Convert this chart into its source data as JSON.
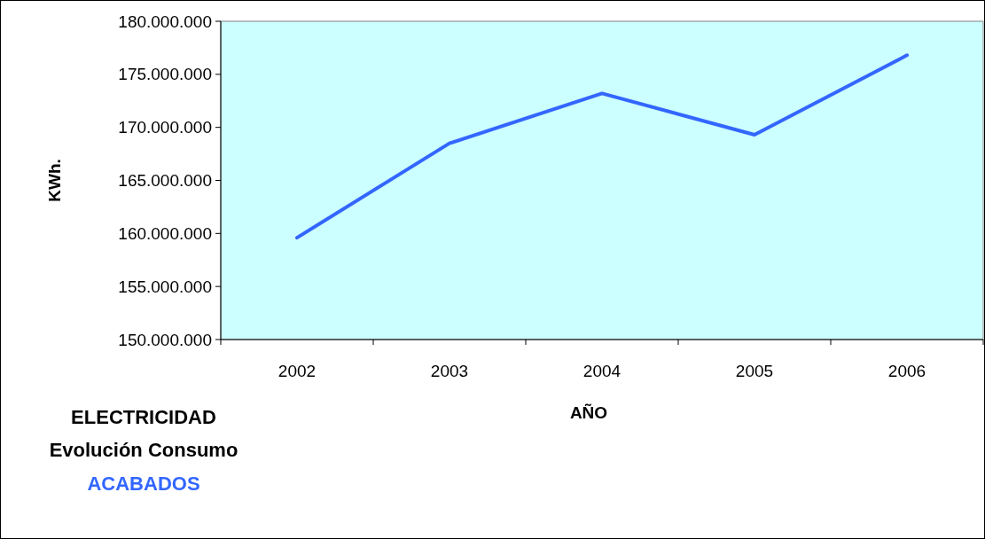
{
  "chart_data": {
    "type": "line",
    "title": "ELECTRICIDAD",
    "subtitle": "Evolución Consumo",
    "xlabel": "AÑO",
    "ylabel": "KWh.",
    "categories": [
      "2002",
      "2003",
      "2004",
      "2005",
      "2006"
    ],
    "series": [
      {
        "name": "ACABADOS",
        "color": "#3366ff",
        "values": [
          159600000,
          168500000,
          173200000,
          169300000,
          176800000
        ]
      }
    ],
    "ylim": [
      150000000,
      180000000
    ],
    "yticks": [
      {
        "value": 150000000,
        "label": "150.000.000"
      },
      {
        "value": 155000000,
        "label": "155.000.000"
      },
      {
        "value": 160000000,
        "label": "160.000.000"
      },
      {
        "value": 165000000,
        "label": "165.000.000"
      },
      {
        "value": 170000000,
        "label": "170.000.000"
      },
      {
        "value": 175000000,
        "label": "175.000.000"
      },
      {
        "value": 180000000,
        "label": "180.000.000"
      }
    ],
    "grid": false,
    "legend": "bottom left",
    "marker": "none",
    "line_style": "solid"
  }
}
